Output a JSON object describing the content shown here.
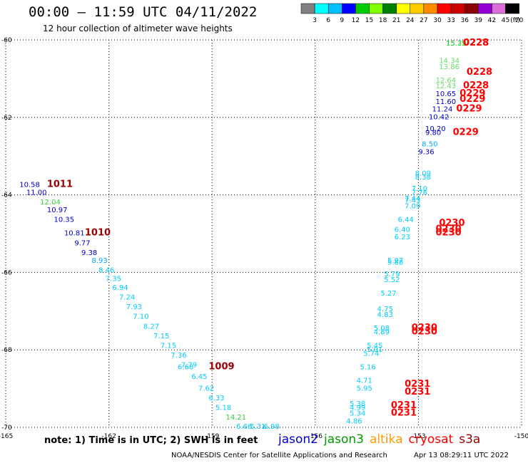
{
  "header": {
    "title": "00:00 – 11:59 UTC 04/11/2022",
    "subtitle": "12 hour collection of altimeter wave heights"
  },
  "colorbar": {
    "ticks": [
      "3",
      "6",
      "9",
      "12",
      "15",
      "18",
      "21",
      "24",
      "27",
      "30",
      "33",
      "36",
      "39",
      "42",
      "45",
      "70"
    ],
    "unit": "(ft)",
    "colors": [
      "#808080",
      "#00ffff",
      "#00bfff",
      "#0000ff",
      "#00cc00",
      "#7fff00",
      "#008000",
      "#ffff00",
      "#ffcc00",
      "#ff8c00",
      "#ff0000",
      "#cc0000",
      "#8b0000",
      "#9400d3",
      "#da70d6",
      "#000000"
    ]
  },
  "footer": {
    "note": "note:  1) Time is in UTC;  2) SWH is in feet",
    "satellites": [
      {
        "name": "jason2",
        "color": "#0000cc"
      },
      {
        "name": "jason3",
        "color": "#009900"
      },
      {
        "name": "altika",
        "color": "#ff9900"
      },
      {
        "name": "cryosat",
        "color": "#ff0000"
      },
      {
        "name": "s3a",
        "color": "#990000"
      }
    ],
    "credit": "NOAA/NESDIS Center for Satellite Applications and Research",
    "timestamp": "Apr 13 08:29:11 UTC 2022"
  },
  "chart_data": {
    "type": "scatter",
    "xlim": [
      -165,
      -150
    ],
    "ylim": [
      -70,
      -60
    ],
    "x_ticks": [
      -165,
      -162,
      -159,
      -156,
      -153,
      -150
    ],
    "x_tick_labels": [
      "-165",
      "-162",
      "-159",
      "-156",
      "-153",
      "-150"
    ],
    "y_ticks": [
      -60,
      -62,
      -64,
      -66,
      -68,
      -70
    ],
    "y_tick_labels": [
      "-60",
      "-62",
      "-64",
      "-66",
      "-68",
      "-70"
    ],
    "grid": "dotted",
    "points": [
      {
        "lon": -164.6,
        "lat": -63.8,
        "label": "10.58",
        "color": "#0000cc"
      },
      {
        "lon": -164.4,
        "lat": -64.0,
        "label": "11.00",
        "color": "#0000cc"
      },
      {
        "lon": -164.0,
        "lat": -64.25,
        "label": "12.04",
        "color": "#33cc33"
      },
      {
        "lon": -163.8,
        "lat": -64.45,
        "label": "10.97",
        "color": "#0000cc"
      },
      {
        "lon": -163.6,
        "lat": -64.7,
        "label": "10.35",
        "color": "#0000cc"
      },
      {
        "lon": -163.3,
        "lat": -65.05,
        "label": "10.81",
        "color": "#0000cc"
      },
      {
        "lon": -163.0,
        "lat": -65.3,
        "label": "9.77",
        "color": "#0000cc"
      },
      {
        "lon": -162.8,
        "lat": -65.55,
        "label": "9.38",
        "color": "#0000cc"
      },
      {
        "lon": -162.5,
        "lat": -65.75,
        "label": "8.93",
        "color": "#00aaff"
      },
      {
        "lon": -162.3,
        "lat": -66.0,
        "label": "8.46",
        "color": "#00ccff"
      },
      {
        "lon": -162.1,
        "lat": -66.22,
        "label": "7.35",
        "color": "#00ccff"
      },
      {
        "lon": -161.9,
        "lat": -66.45,
        "label": "6.94",
        "color": "#00ccff"
      },
      {
        "lon": -161.7,
        "lat": -66.7,
        "label": "7.24",
        "color": "#00ccff"
      },
      {
        "lon": -161.5,
        "lat": -66.95,
        "label": "7.93",
        "color": "#00ccff"
      },
      {
        "lon": -161.3,
        "lat": -67.2,
        "label": "7.10",
        "color": "#00ccff"
      },
      {
        "lon": -161.0,
        "lat": -67.45,
        "label": "8.27",
        "color": "#00ccff"
      },
      {
        "lon": -160.7,
        "lat": -67.7,
        "label": "7.15",
        "color": "#00ccff"
      },
      {
        "lon": -160.5,
        "lat": -67.95,
        "label": "7.15",
        "color": "#00ccff"
      },
      {
        "lon": -160.2,
        "lat": -68.2,
        "label": "7.36",
        "color": "#00ccff"
      },
      {
        "lon": -159.9,
        "lat": -68.45,
        "label": "7.79",
        "color": "#00ccff"
      },
      {
        "lon": -160.0,
        "lat": -68.5,
        "label": "6.68",
        "color": "#00ccff"
      },
      {
        "lon": -159.6,
        "lat": -68.75,
        "label": "6.45",
        "color": "#00ccff"
      },
      {
        "lon": -159.4,
        "lat": -69.05,
        "label": "7.62",
        "color": "#00ccff"
      },
      {
        "lon": -159.1,
        "lat": -69.3,
        "label": "6.33",
        "color": "#00ccff"
      },
      {
        "lon": -158.9,
        "lat": -69.55,
        "label": "5.18",
        "color": "#00ccff"
      },
      {
        "lon": -158.6,
        "lat": -69.8,
        "label": "14.21",
        "color": "#33cc33"
      },
      {
        "lon": -158.3,
        "lat": -70.05,
        "label": "6.66",
        "color": "#00ccff"
      },
      {
        "lon": -157.9,
        "lat": -70.3,
        "label": "5.31",
        "color": "#00ccff"
      },
      {
        "lon": -157.5,
        "lat": -70.55,
        "label": "6.98",
        "color": "#00ccff"
      },
      {
        "lon": -152.2,
        "lat": -60.0,
        "label": "15.39",
        "color": "#33cc33"
      },
      {
        "lon": -152.2,
        "lat": -60.1,
        "label": "15.22",
        "color": "#33cc33"
      },
      {
        "lon": -152.4,
        "lat": -60.6,
        "label": "14.34",
        "color": "#66dd66"
      },
      {
        "lon": -152.4,
        "lat": -60.75,
        "label": "13.86",
        "color": "#66dd66"
      },
      {
        "lon": -152.5,
        "lat": -61.1,
        "label": "12.64",
        "color": "#66dd66"
      },
      {
        "lon": -152.5,
        "lat": -61.25,
        "label": "12.43",
        "color": "#66dd66"
      },
      {
        "lon": -152.5,
        "lat": -61.45,
        "label": "10.65",
        "color": "#0000cc"
      },
      {
        "lon": -152.5,
        "lat": -61.65,
        "label": "11.60",
        "color": "#0000cc"
      },
      {
        "lon": -152.6,
        "lat": -61.85,
        "label": "11.24",
        "color": "#0000cc"
      },
      {
        "lon": -152.7,
        "lat": -62.05,
        "label": "10.42",
        "color": "#0000cc"
      },
      {
        "lon": -152.8,
        "lat": -62.35,
        "label": "10.20",
        "color": "#0000cc"
      },
      {
        "lon": -152.8,
        "lat": -62.45,
        "label": "9.80",
        "color": "#0000cc"
      },
      {
        "lon": -152.9,
        "lat": -62.75,
        "label": "8.50",
        "color": "#00aaff"
      },
      {
        "lon": -153.0,
        "lat": -62.95,
        "label": "9.36",
        "color": "#0000cc"
      },
      {
        "lon": -153.1,
        "lat": -63.5,
        "label": "8.09",
        "color": "#00ccff"
      },
      {
        "lon": -153.1,
        "lat": -63.6,
        "label": "8.38",
        "color": "#00ccff"
      },
      {
        "lon": -153.2,
        "lat": -63.9,
        "label": "7.10",
        "color": "#00ccff"
      },
      {
        "lon": -153.2,
        "lat": -64.0,
        "label": "7.76",
        "color": "#00ccff"
      },
      {
        "lon": -153.4,
        "lat": -64.15,
        "label": "7.44",
        "color": "#00ccff"
      },
      {
        "lon": -153.4,
        "lat": -64.2,
        "label": "7.43",
        "color": "#00ccff"
      },
      {
        "lon": -153.4,
        "lat": -64.35,
        "label": "7.09",
        "color": "#00ccff"
      },
      {
        "lon": -153.6,
        "lat": -64.7,
        "label": "6.44",
        "color": "#00ccff"
      },
      {
        "lon": -153.7,
        "lat": -64.95,
        "label": "6.40",
        "color": "#00ccff"
      },
      {
        "lon": -153.7,
        "lat": -65.15,
        "label": "6.23",
        "color": "#00ccff"
      },
      {
        "lon": -153.9,
        "lat": -65.75,
        "label": "5.97",
        "color": "#00ccff"
      },
      {
        "lon": -153.9,
        "lat": -65.8,
        "label": "5.88",
        "color": "#00ccff"
      },
      {
        "lon": -154.0,
        "lat": -66.1,
        "label": "5.79",
        "color": "#00ccff"
      },
      {
        "lon": -154.0,
        "lat": -66.25,
        "label": "5.52",
        "color": "#00ccff"
      },
      {
        "lon": -154.1,
        "lat": -66.6,
        "label": "5.27",
        "color": "#00ccff"
      },
      {
        "lon": -154.2,
        "lat": -67.0,
        "label": "4.75",
        "color": "#00ccff"
      },
      {
        "lon": -154.2,
        "lat": -67.15,
        "label": "4.83",
        "color": "#00ccff"
      },
      {
        "lon": -154.3,
        "lat": -67.5,
        "label": "5.08",
        "color": "#00ccff"
      },
      {
        "lon": -154.3,
        "lat": -67.6,
        "label": "4.89",
        "color": "#00ccff"
      },
      {
        "lon": -154.5,
        "lat": -67.95,
        "label": "5.45",
        "color": "#00ccff"
      },
      {
        "lon": -154.5,
        "lat": -68.05,
        "label": "5.91",
        "color": "#00ccff"
      },
      {
        "lon": -154.6,
        "lat": -68.15,
        "label": "5.74",
        "color": "#00ccff"
      },
      {
        "lon": -154.7,
        "lat": -68.5,
        "label": "5.16",
        "color": "#00ccff"
      },
      {
        "lon": -154.8,
        "lat": -68.85,
        "label": "4.71",
        "color": "#00ccff"
      },
      {
        "lon": -154.8,
        "lat": -69.05,
        "label": "5.95",
        "color": "#00ccff"
      },
      {
        "lon": -155.0,
        "lat": -69.45,
        "label": "5.38",
        "color": "#00ccff"
      },
      {
        "lon": -155.0,
        "lat": -69.55,
        "label": "4.99",
        "color": "#00ccff"
      },
      {
        "lon": -155.0,
        "lat": -69.7,
        "label": "5.34",
        "color": "#00ccff"
      },
      {
        "lon": -155.1,
        "lat": -69.9,
        "label": "4.86",
        "color": "#00ccff"
      }
    ],
    "time_labels": [
      {
        "lon": -163.8,
        "lat": -63.8,
        "label": "1011",
        "color": "#990000"
      },
      {
        "lon": -162.7,
        "lat": -65.05,
        "label": "1010",
        "color": "#990000"
      },
      {
        "lon": -159.1,
        "lat": -68.5,
        "label": "1009",
        "color": "#990000"
      },
      {
        "lon": -151.7,
        "lat": -60.0,
        "label": "0228",
        "color": "#ff0000"
      },
      {
        "lon": -151.7,
        "lat": -60.05,
        "label": "0228",
        "color": "#ff0000"
      },
      {
        "lon": -151.6,
        "lat": -60.9,
        "label": "0228",
        "color": "#ff0000"
      },
      {
        "lon": -151.7,
        "lat": -61.25,
        "label": "0228",
        "color": "#ff0000"
      },
      {
        "lon": -151.8,
        "lat": -61.45,
        "label": "0229",
        "color": "#ff0000"
      },
      {
        "lon": -151.8,
        "lat": -61.6,
        "label": "0229",
        "color": "#ff0000"
      },
      {
        "lon": -151.9,
        "lat": -61.85,
        "label": "0229",
        "color": "#ff0000"
      },
      {
        "lon": -152.0,
        "lat": -62.45,
        "label": "0229",
        "color": "#ff0000"
      },
      {
        "lon": -152.4,
        "lat": -64.8,
        "label": "0230",
        "color": "#ff0000"
      },
      {
        "lon": -152.5,
        "lat": -64.95,
        "label": "0230",
        "color": "#ff0000"
      },
      {
        "lon": -152.5,
        "lat": -65.05,
        "label": "0230",
        "color": "#ff0000"
      },
      {
        "lon": -153.2,
        "lat": -67.5,
        "label": "0230",
        "color": "#ff0000"
      },
      {
        "lon": -153.2,
        "lat": -67.6,
        "label": "0230",
        "color": "#ff0000"
      },
      {
        "lon": -153.4,
        "lat": -68.95,
        "label": "0231",
        "color": "#ff0000"
      },
      {
        "lon": -153.4,
        "lat": -69.15,
        "label": "0231",
        "color": "#ff0000"
      },
      {
        "lon": -153.8,
        "lat": -69.5,
        "label": "0231",
        "color": "#ff0000"
      },
      {
        "lon": -153.8,
        "lat": -69.7,
        "label": "0231",
        "color": "#ff0000"
      }
    ]
  }
}
